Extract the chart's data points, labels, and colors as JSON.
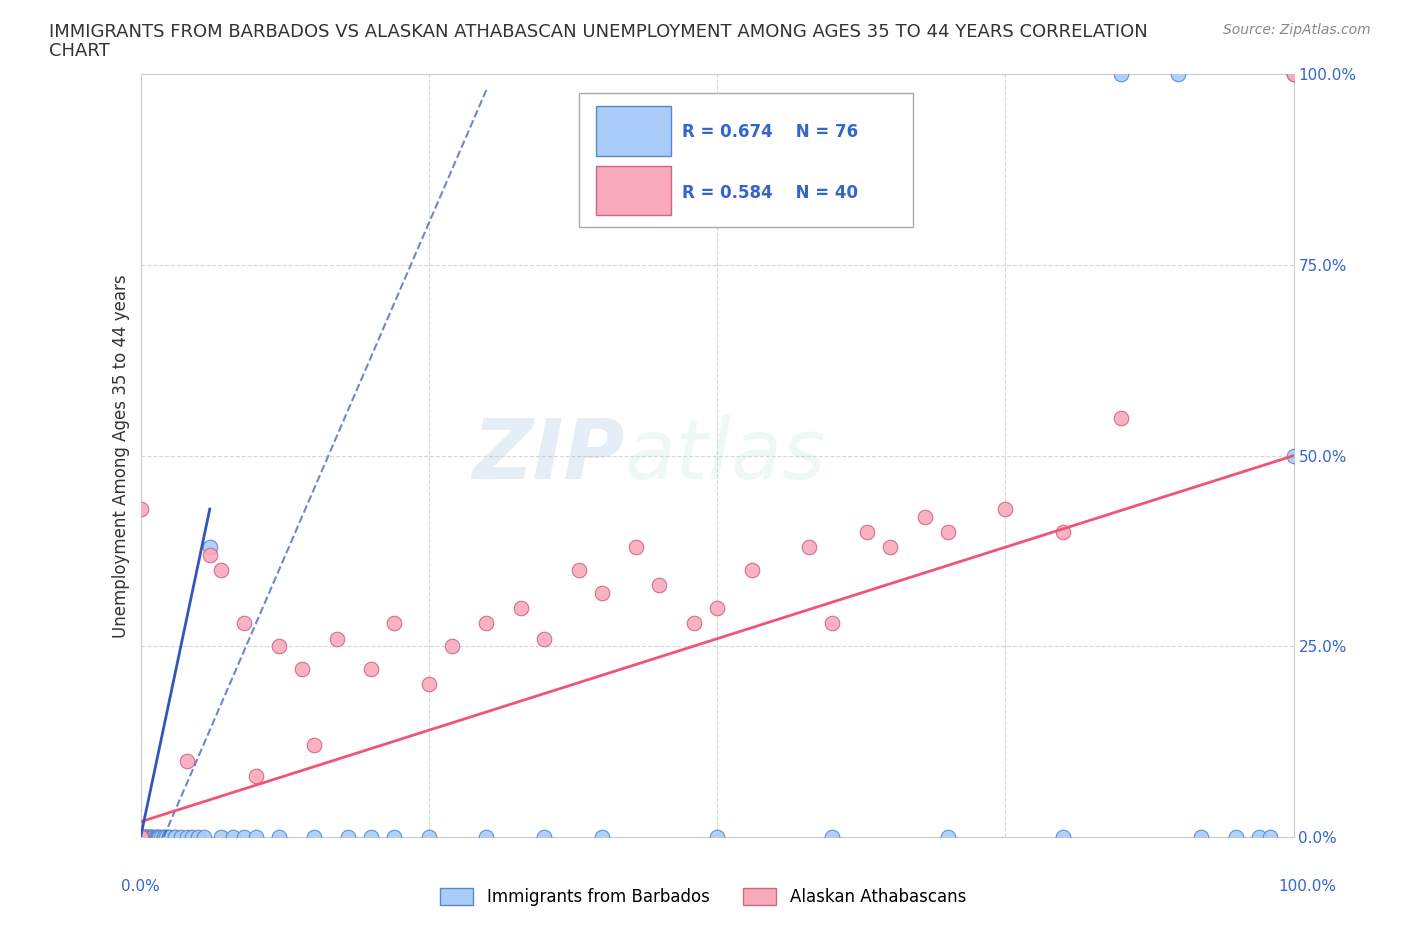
{
  "title_line1": "IMMIGRANTS FROM BARBADOS VS ALASKAN ATHABASCAN UNEMPLOYMENT AMONG AGES 35 TO 44 YEARS CORRELATION",
  "title_line2": "CHART",
  "source": "Source: ZipAtlas.com",
  "ylabel": "Unemployment Among Ages 35 to 44 years",
  "xlim": [
    0,
    1.0
  ],
  "ylim": [
    0,
    1.0
  ],
  "xticks": [
    0.0,
    0.25,
    0.5,
    0.75,
    1.0
  ],
  "yticks": [
    0.0,
    0.25,
    0.5,
    0.75,
    1.0
  ],
  "xticklabels": [
    "0.0%",
    "25.0%",
    "50.0%",
    "75.0%",
    "100.0%"
  ],
  "yticklabels": [
    "0.0%",
    "25.0%",
    "50.0%",
    "75.0%",
    "100.0%"
  ],
  "barbados_color": "#aaccf8",
  "barbados_edge": "#5588cc",
  "athabascan_color": "#f8aabc",
  "athabascan_edge": "#cc6688",
  "blue_trend_color": "#3355bb",
  "pink_trend_color": "#ee5577",
  "R_barbados": 0.674,
  "N_barbados": 76,
  "R_athabascan": 0.584,
  "N_athabascan": 40,
  "legend_label_1": "Immigrants from Barbados",
  "legend_label_2": "Alaskan Athabascans",
  "watermark_zip": "ZIP",
  "watermark_atlas": "atlas",
  "background": "#ffffff",
  "grid_color": "#cccccc",
  "barbados_x": [
    0.0,
    0.0,
    0.0,
    0.0,
    0.0,
    0.0,
    0.0,
    0.0,
    0.0,
    0.0,
    0.0,
    0.0,
    0.0,
    0.0,
    0.0,
    0.0,
    0.0,
    0.0,
    0.0,
    0.0,
    0.002,
    0.003,
    0.003,
    0.004,
    0.005,
    0.005,
    0.006,
    0.007,
    0.008,
    0.009,
    0.01,
    0.01,
    0.012,
    0.013,
    0.014,
    0.015,
    0.016,
    0.018,
    0.02,
    0.02,
    0.022,
    0.025,
    0.025,
    0.03,
    0.03,
    0.035,
    0.04,
    0.045,
    0.05,
    0.055,
    0.06,
    0.07,
    0.08,
    0.09,
    0.1,
    0.12,
    0.15,
    0.18,
    0.2,
    0.22,
    0.25,
    0.3,
    0.35,
    0.4,
    0.5,
    0.6,
    0.7,
    0.8,
    0.85,
    0.9,
    0.92,
    0.95,
    0.97,
    0.98,
    1.0,
    1.0
  ],
  "barbados_y": [
    0.0,
    0.0,
    0.0,
    0.0,
    0.0,
    0.0,
    0.0,
    0.0,
    0.0,
    0.0,
    0.0,
    0.0,
    0.0,
    0.0,
    0.0,
    0.0,
    0.0,
    0.0,
    0.0,
    0.0,
    0.0,
    0.0,
    0.0,
    0.0,
    0.0,
    0.0,
    0.0,
    0.0,
    0.0,
    0.0,
    0.0,
    0.0,
    0.0,
    0.0,
    0.0,
    0.0,
    0.0,
    0.0,
    0.0,
    0.0,
    0.0,
    0.0,
    0.0,
    0.0,
    0.0,
    0.0,
    0.0,
    0.0,
    0.0,
    0.0,
    0.38,
    0.0,
    0.0,
    0.0,
    0.0,
    0.0,
    0.0,
    0.0,
    0.0,
    0.0,
    0.0,
    0.0,
    0.0,
    0.0,
    0.0,
    0.0,
    0.0,
    0.0,
    1.0,
    1.0,
    0.0,
    0.0,
    0.0,
    0.0,
    0.5,
    1.0
  ],
  "athabascan_x": [
    0.0,
    0.0,
    0.0,
    0.0,
    0.0,
    0.0,
    0.0,
    0.04,
    0.06,
    0.07,
    0.09,
    0.1,
    0.12,
    0.14,
    0.15,
    0.17,
    0.2,
    0.22,
    0.25,
    0.27,
    0.3,
    0.33,
    0.35,
    0.38,
    0.4,
    0.43,
    0.45,
    0.48,
    0.5,
    0.53,
    0.58,
    0.6,
    0.63,
    0.65,
    0.68,
    0.7,
    0.75,
    0.8,
    0.85,
    1.0
  ],
  "athabascan_y": [
    0.0,
    0.0,
    0.0,
    0.0,
    0.0,
    0.0,
    0.43,
    0.1,
    0.37,
    0.35,
    0.28,
    0.08,
    0.25,
    0.22,
    0.12,
    0.26,
    0.22,
    0.28,
    0.2,
    0.25,
    0.28,
    0.3,
    0.26,
    0.35,
    0.32,
    0.38,
    0.33,
    0.28,
    0.3,
    0.35,
    0.38,
    0.28,
    0.4,
    0.38,
    0.42,
    0.4,
    0.43,
    0.4,
    0.55,
    1.0
  ],
  "title_fontsize": 13,
  "axis_label_fontsize": 12,
  "tick_fontsize": 11,
  "legend_fontsize": 12,
  "watermark_fontsize_zip": 60,
  "watermark_fontsize_atlas": 60
}
